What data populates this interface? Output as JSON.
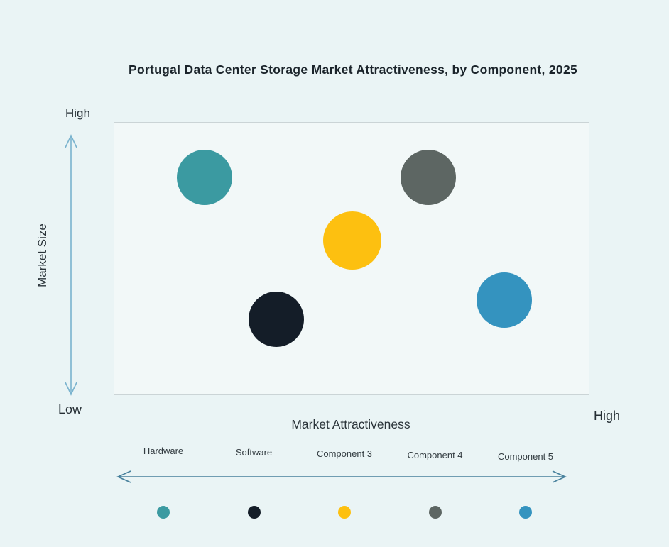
{
  "title": "Portugal Data Center Storage Market Attractiveness,  by Component, 2025",
  "y_axis": {
    "label": "Market Size",
    "top_label": "High",
    "bottom_label": "Low"
  },
  "x_axis": {
    "label": "Market Attractiveness",
    "right_label": "High"
  },
  "colors": {
    "background": "#EAF4F5",
    "plot_background": "#F2F8F8",
    "plot_border": "#CBD4D6",
    "title_text": "#1B242B",
    "vertical_arrow": "#7AB3CE",
    "horizontal_arrow": "#47809C"
  },
  "chart_data": {
    "type": "scatter",
    "title": "Portugal Data Center Storage Market Attractiveness,  by Component, 2025",
    "xlabel": "Market Attractiveness",
    "ylabel": "Market Size",
    "x_range_labels": [
      "Low",
      "High"
    ],
    "y_range_labels": [
      "Low",
      "High"
    ],
    "axis_scale_note": "qualitative axes from Low to High, values are relative 0-1 positions read from bubble centers",
    "grid": false,
    "legend_position": "bottom",
    "series": [
      {
        "name": "Hardware",
        "color": "#3B9AA1",
        "x": 0.19,
        "y": 0.8,
        "radius": 39
      },
      {
        "name": "Software",
        "color": "#141D28",
        "x": 0.34,
        "y": 0.28,
        "radius": 39
      },
      {
        "name": "Component 3",
        "color": "#FDC010",
        "x": 0.5,
        "y": 0.57,
        "radius": 41
      },
      {
        "name": "Component 4",
        "color": "#5D6663",
        "x": 0.66,
        "y": 0.8,
        "radius": 39
      },
      {
        "name": "Component 5",
        "color": "#3493BF",
        "x": 0.82,
        "y": 0.35,
        "radius": 39
      }
    ]
  }
}
